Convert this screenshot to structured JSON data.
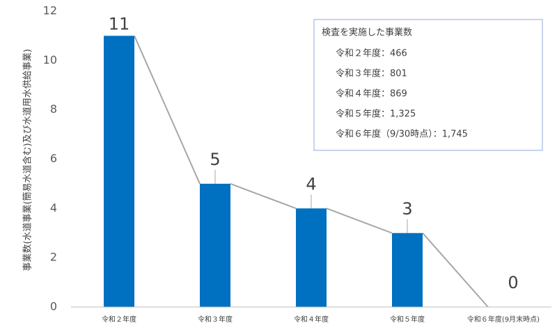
{
  "chart_data": {
    "type": "bar",
    "y_label": "事業数(水道事業(簡易水道含む)及び水道用水供給事業)",
    "categories": [
      "令和２年度",
      "令和３年度",
      "令和４年度",
      "令和５年度",
      "令和６年度(9月末時点)"
    ],
    "values": [
      11,
      5,
      4,
      3,
      0
    ],
    "color": "#0070c0",
    "connector_color": "#a6a6a6",
    "ylim": [
      0,
      12
    ],
    "yticks": [
      0,
      2,
      4,
      6,
      8,
      10,
      12
    ],
    "grid": false,
    "annotation": {
      "title": "検査を実施した事業数",
      "lines": [
        "令和２年度：466",
        "令和３年度：801",
        "令和４年度：869",
        "令和５年度：1,325",
        "令和６年度（9/30時点）：1,745"
      ]
    }
  }
}
